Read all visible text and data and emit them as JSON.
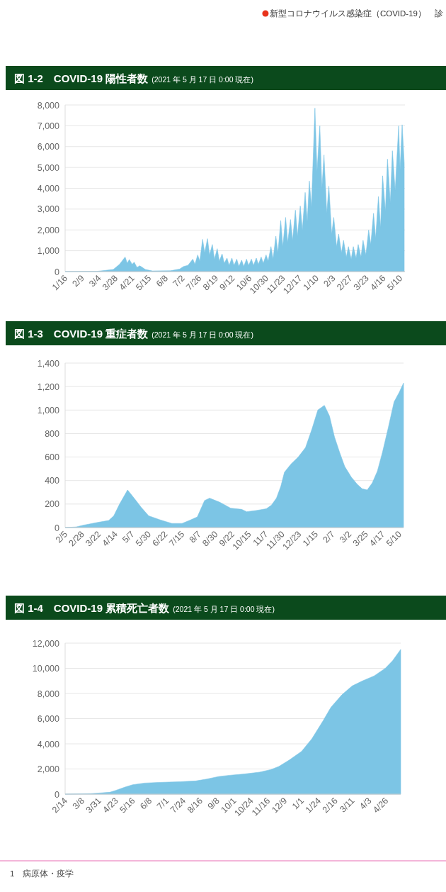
{
  "chart_data": [
    {
      "type": "area",
      "title": "図 1-2　COVID-19 陽性者数",
      "subtitle": "(2021 年 5 月 17 日 0:00 現在)",
      "annotations": [
        "新型コロナウイルス感染症（COVID-19）　診"
      ],
      "grid": "y",
      "xlim": [
        "2020-01-16",
        "2021-05-17"
      ],
      "ylim": [
        0,
        8000
      ],
      "yticks": [
        0,
        {
          "value": 1000,
          "label": "1,000"
        },
        {
          "value": 2000,
          "label": "2,000"
        },
        {
          "value": 3000,
          "label": "3,000"
        },
        {
          "value": 4000,
          "label": "4,000"
        },
        {
          "value": 5000,
          "label": "5,000"
        },
        {
          "value": 6000,
          "label": "6,000"
        },
        {
          "value": 7000,
          "label": "7,000"
        },
        {
          "value": 8000,
          "label": "8,000"
        }
      ],
      "xticks": [
        {
          "value": "2020-01-16",
          "label": "1/16"
        },
        {
          "value": "2020-02-09",
          "label": "2/9"
        },
        {
          "value": "2020-03-04",
          "label": "3/4"
        },
        {
          "value": "2020-03-28",
          "label": "3/28"
        },
        {
          "value": "2020-04-21",
          "label": "4/21"
        },
        {
          "value": "2020-05-15",
          "label": "5/15"
        },
        {
          "value": "2020-06-08",
          "label": "6/8"
        },
        {
          "value": "2020-07-02",
          "label": "7/2"
        },
        {
          "value": "2020-07-26",
          "label": "7/26"
        },
        {
          "value": "2020-08-19",
          "label": "8/19"
        },
        {
          "value": "2020-09-12",
          "label": "9/12"
        },
        {
          "value": "2020-10-06",
          "label": "10/6"
        },
        {
          "value": "2020-10-30",
          "label": "10/30"
        },
        {
          "value": "2020-11-23",
          "label": "11/23"
        },
        {
          "value": "2020-12-17",
          "label": "12/17"
        },
        {
          "value": "2021-01-10",
          "label": "1/10"
        },
        {
          "value": "2021-02-03",
          "label": "2/3"
        },
        {
          "value": "2021-02-27",
          "label": "2/27"
        },
        {
          "value": "2021-03-23",
          "label": "3/23"
        },
        {
          "value": "2021-04-16",
          "label": "4/16"
        },
        {
          "value": "2021-05-10",
          "label": "5/10"
        }
      ],
      "series": [
        {
          "color": "#7cc5e5",
          "x": [
            "2020-01-16",
            "2020-03-01",
            "2020-03-25",
            "2020-04-03",
            "2020-04-11",
            "2020-04-14",
            "2020-04-17",
            "2020-04-21",
            "2020-04-24",
            "2020-04-28",
            "2020-05-02",
            "2020-05-10",
            "2020-05-20",
            "2020-06-15",
            "2020-06-28",
            "2020-07-04",
            "2020-07-10",
            "2020-07-17",
            "2020-07-20",
            "2020-07-24",
            "2020-07-27",
            "2020-07-31",
            "2020-08-03",
            "2020-08-07",
            "2020-08-10",
            "2020-08-14",
            "2020-08-17",
            "2020-08-21",
            "2020-08-24",
            "2020-08-28",
            "2020-08-31",
            "2020-09-04",
            "2020-09-07",
            "2020-09-11",
            "2020-09-14",
            "2020-09-18",
            "2020-09-21",
            "2020-09-25",
            "2020-09-28",
            "2020-10-02",
            "2020-10-05",
            "2020-10-09",
            "2020-10-12",
            "2020-10-16",
            "2020-10-19",
            "2020-10-23",
            "2020-10-26",
            "2020-10-30",
            "2020-11-02",
            "2020-11-06",
            "2020-11-09",
            "2020-11-13",
            "2020-11-16",
            "2020-11-20",
            "2020-11-23",
            "2020-11-27",
            "2020-11-30",
            "2020-12-04",
            "2020-12-07",
            "2020-12-11",
            "2020-12-14",
            "2020-12-18",
            "2020-12-21",
            "2020-12-25",
            "2020-12-28",
            "2020-12-31",
            "2021-01-03",
            "2021-01-08",
            "2021-01-11",
            "2021-01-15",
            "2021-01-18",
            "2021-01-21",
            "2021-01-25",
            "2021-01-28",
            "2021-02-01",
            "2021-02-04",
            "2021-02-08",
            "2021-02-11",
            "2021-02-15",
            "2021-02-18",
            "2021-02-22",
            "2021-02-25",
            "2021-03-01",
            "2021-03-04",
            "2021-03-08",
            "2021-03-11",
            "2021-03-15",
            "2021-03-18",
            "2021-03-22",
            "2021-03-26",
            "2021-03-29",
            "2021-04-02",
            "2021-04-05",
            "2021-04-09",
            "2021-04-12",
            "2021-04-15",
            "2021-04-19",
            "2021-04-22",
            "2021-04-26",
            "2021-04-29",
            "2021-05-03",
            "2021-05-08",
            "2021-05-10",
            "2021-05-13",
            "2021-05-16"
          ],
          "values": [
            0,
            10,
            100,
            350,
            700,
            400,
            580,
            350,
            450,
            200,
            280,
            100,
            30,
            40,
            120,
            250,
            300,
            600,
            350,
            800,
            500,
            1550,
            900,
            1580,
            800,
            1300,
            600,
            1100,
            500,
            850,
            400,
            650,
            300,
            650,
            300,
            600,
            250,
            550,
            250,
            600,
            300,
            600,
            300,
            650,
            350,
            700,
            400,
            800,
            500,
            1200,
            600,
            1700,
            900,
            2450,
            1200,
            2600,
            1400,
            2500,
            1500,
            2950,
            1700,
            3150,
            2000,
            3800,
            2400,
            4350,
            3100,
            7850,
            4800,
            7000,
            4000,
            5600,
            2800,
            4100,
            1800,
            2600,
            1200,
            1800,
            900,
            1500,
            700,
            1200,
            600,
            1200,
            650,
            1300,
            700,
            1500,
            800,
            2000,
            1300,
            2800,
            1600,
            3600,
            2100,
            4600,
            2900,
            5400,
            3300,
            5800,
            3900,
            7000,
            4900,
            7050,
            5200
          ]
        }
      ]
    },
    {
      "type": "area",
      "title": "図 1-3　COVID-19 重症者数",
      "subtitle": "(2021 年 5 月 17 日 0:00 現在)",
      "grid": "y",
      "xlim": [
        "2020-02-05",
        "2021-05-16"
      ],
      "ylim": [
        0,
        1400
      ],
      "yticks": [
        0,
        200,
        400,
        600,
        800,
        {
          "value": 1000,
          "label": "1,000"
        },
        {
          "value": 1200,
          "label": "1,200"
        },
        {
          "value": 1400,
          "label": "1,400"
        }
      ],
      "xticks": [
        {
          "value": "2020-02-05",
          "label": "2/5"
        },
        {
          "value": "2020-02-28",
          "label": "2/28"
        },
        {
          "value": "2020-03-22",
          "label": "3/22"
        },
        {
          "value": "2020-04-14",
          "label": "4/14"
        },
        {
          "value": "2020-05-07",
          "label": "5/7"
        },
        {
          "value": "2020-05-30",
          "label": "5/30"
        },
        {
          "value": "2020-06-22",
          "label": "6/22"
        },
        {
          "value": "2020-07-15",
          "label": "7/15"
        },
        {
          "value": "2020-08-07",
          "label": "8/7"
        },
        {
          "value": "2020-08-30",
          "label": "8/30"
        },
        {
          "value": "2020-09-22",
          "label": "9/22"
        },
        {
          "value": "2020-10-15",
          "label": "10/15"
        },
        {
          "value": "2020-11-07",
          "label": "11/7"
        },
        {
          "value": "2020-11-30",
          "label": "11/30"
        },
        {
          "value": "2020-12-23",
          "label": "12/23"
        },
        {
          "value": "2021-01-15",
          "label": "1/15"
        },
        {
          "value": "2021-02-07",
          "label": "2/7"
        },
        {
          "value": "2021-03-02",
          "label": "3/2"
        },
        {
          "value": "2021-03-25",
          "label": "3/25"
        },
        {
          "value": "2021-04-17",
          "label": "4/17"
        },
        {
          "value": "2021-05-10",
          "label": "5/10"
        }
      ],
      "series": [
        {
          "color": "#7cc5e5",
          "x": [
            "2020-02-05",
            "2020-02-20",
            "2020-03-01",
            "2020-03-22",
            "2020-04-05",
            "2020-04-12",
            "2020-04-20",
            "2020-05-01",
            "2020-05-10",
            "2020-05-20",
            "2020-05-30",
            "2020-06-15",
            "2020-07-01",
            "2020-07-15",
            "2020-07-25",
            "2020-08-05",
            "2020-08-15",
            "2020-08-22",
            "2020-09-05",
            "2020-09-20",
            "2020-10-05",
            "2020-10-12",
            "2020-10-25",
            "2020-11-08",
            "2020-11-15",
            "2020-11-22",
            "2020-11-28",
            "2020-12-03",
            "2020-12-12",
            "2020-12-22",
            "2021-01-01",
            "2021-01-10",
            "2021-01-18",
            "2021-01-27",
            "2021-02-03",
            "2021-02-10",
            "2021-02-17",
            "2021-02-24",
            "2021-03-05",
            "2021-03-13",
            "2021-03-20",
            "2021-03-27",
            "2021-04-03",
            "2021-04-10",
            "2021-04-17",
            "2021-04-25",
            "2021-05-03",
            "2021-05-10",
            "2021-05-16"
          ],
          "values": [
            0,
            5,
            20,
            45,
            60,
            100,
            200,
            320,
            250,
            170,
            100,
            65,
            35,
            35,
            60,
            90,
            230,
            250,
            215,
            165,
            155,
            135,
            145,
            160,
            190,
            250,
            350,
            470,
            540,
            600,
            680,
            840,
            1000,
            1040,
            950,
            770,
            640,
            520,
            430,
            370,
            330,
            320,
            380,
            480,
            640,
            850,
            1070,
            1150,
            1230
          ]
        }
      ]
    },
    {
      "type": "area",
      "title": "図 1-4　COVID-19 累積死亡者数",
      "subtitle": "(2021 年 5 月 17 日 0:00 現在)",
      "annotations": [
        "1　病原体・疫学"
      ],
      "grid": "y",
      "xlim": [
        "2020-02-14",
        "2021-05-16"
      ],
      "ylim": [
        0,
        12000
      ],
      "yticks": [
        0,
        {
          "value": 2000,
          "label": "2,000"
        },
        {
          "value": 4000,
          "label": "4,000"
        },
        {
          "value": 6000,
          "label": "6,000"
        },
        {
          "value": 8000,
          "label": "8,000"
        },
        {
          "value": 10000,
          "label": "10,000"
        },
        {
          "value": 12000,
          "label": "12,000"
        }
      ],
      "xticks": [
        {
          "value": "2020-02-14",
          "label": "2/14"
        },
        {
          "value": "2020-03-08",
          "label": "3/8"
        },
        {
          "value": "2020-03-31",
          "label": "3/31"
        },
        {
          "value": "2020-04-23",
          "label": "4/23"
        },
        {
          "value": "2020-05-16",
          "label": "5/16"
        },
        {
          "value": "2020-06-08",
          "label": "6/8"
        },
        {
          "value": "2020-07-01",
          "label": "7/1"
        },
        {
          "value": "2020-07-24",
          "label": "7/24"
        },
        {
          "value": "2020-08-16",
          "label": "8/16"
        },
        {
          "value": "2020-09-08",
          "label": "9/8"
        },
        {
          "value": "2020-10-01",
          "label": "10/1"
        },
        {
          "value": "2020-10-24",
          "label": "10/24"
        },
        {
          "value": "2020-11-16",
          "label": "11/16"
        },
        {
          "value": "2020-12-09",
          "label": "12/9"
        },
        {
          "value": "2021-01-01",
          "label": "1/1"
        },
        {
          "value": "2021-01-24",
          "label": "1/24"
        },
        {
          "value": "2021-02-16",
          "label": "2/16"
        },
        {
          "value": "2021-03-11",
          "label": "3/11"
        },
        {
          "value": "2021-04-03",
          "label": "4/3"
        },
        {
          "value": "2021-04-26",
          "label": "4/26"
        }
      ],
      "series": [
        {
          "color": "#7cc5e5",
          "x": [
            "2020-02-14",
            "2020-03-20",
            "2020-04-15",
            "2020-04-23",
            "2020-05-05",
            "2020-05-16",
            "2020-06-01",
            "2020-06-20",
            "2020-07-20",
            "2020-08-10",
            "2020-08-25",
            "2020-09-10",
            "2020-09-25",
            "2020-10-15",
            "2020-11-05",
            "2020-11-20",
            "2020-12-01",
            "2020-12-15",
            "2021-01-01",
            "2021-01-15",
            "2021-01-30",
            "2021-02-10",
            "2021-02-25",
            "2021-03-11",
            "2021-03-25",
            "2021-04-10",
            "2021-04-25",
            "2021-05-05",
            "2021-05-16"
          ],
          "values": [
            0,
            40,
            150,
            300,
            550,
            750,
            880,
            930,
            990,
            1050,
            1200,
            1400,
            1500,
            1600,
            1750,
            1950,
            2200,
            2700,
            3400,
            4400,
            5800,
            6900,
            7900,
            8600,
            9000,
            9400,
            10000,
            10600,
            11500
          ]
        }
      ]
    }
  ]
}
